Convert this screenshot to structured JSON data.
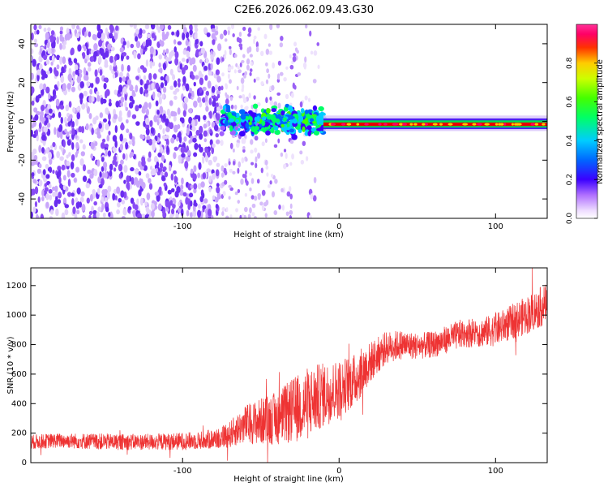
{
  "title": "C2E6.2026.062.09.43.G30",
  "colors": {
    "snr_line": "#ee3333",
    "axis": "#000000",
    "sparse_purple": "#7a3df0",
    "faint_purple": "#e3d2fb"
  },
  "chart_data": [
    {
      "type": "heatmap",
      "title": "",
      "xlabel": "Height of straight line (km)",
      "ylabel": "Frequency (Hz)",
      "xlim": [
        -197,
        133
      ],
      "ylim": [
        -50,
        50
      ],
      "xticks": [
        -100,
        0,
        100
      ],
      "yticks": [
        -40,
        -20,
        0,
        20,
        40
      ],
      "colorbar": {
        "label": "Normalized spectral amplitude",
        "range": [
          0,
          1
        ],
        "ticks": [
          0.0,
          0.2,
          0.4,
          0.6,
          0.8
        ],
        "colormap": "rainbow (white-purple-blue-cyan-green-yellow-red-magenta)"
      },
      "features": [
        {
          "desc": "sparse noise speckle",
          "x_range": [
            -197,
            -75
          ],
          "f_range": [
            -50,
            50
          ],
          "amplitude": 0.15
        },
        {
          "desc": "fading noise",
          "x_range": [
            -75,
            -15
          ],
          "f_range": [
            -50,
            50
          ],
          "amplitude": 0.08
        },
        {
          "desc": "emerging carrier band",
          "x_range": [
            -75,
            -10
          ],
          "f_center": 0,
          "f_halfwidth": 5,
          "amplitude": 0.4
        },
        {
          "desc": "strong carrier line",
          "x_range": [
            -10,
            133
          ],
          "f_center": -1.5,
          "f_halfwidth": 1.5,
          "amplitude": 0.95
        }
      ]
    },
    {
      "type": "line",
      "title": "",
      "xlabel": "Height of straight line (km)",
      "ylabel": "SNR (10 * v/v)",
      "xlim": [
        -197,
        133
      ],
      "ylim": [
        0,
        1320
      ],
      "xticks": [
        -100,
        0,
        100
      ],
      "yticks": [
        0,
        200,
        400,
        600,
        800,
        1000,
        1200
      ],
      "series": [
        {
          "x": [
            -197,
            -180,
            -160,
            -140,
            -120,
            -100,
            -90,
            -80,
            -70,
            -60,
            -50,
            -40,
            -30,
            -20,
            -10,
            0,
            10,
            20,
            30,
            40,
            50,
            60,
            70,
            80,
            90,
            100,
            110,
            120,
            133
          ],
          "values": [
            140,
            150,
            145,
            140,
            140,
            145,
            150,
            160,
            190,
            260,
            280,
            300,
            350,
            400,
            460,
            500,
            560,
            680,
            780,
            800,
            790,
            800,
            840,
            880,
            880,
            900,
            950,
            1000,
            1080
          ],
          "noise_amplitude": [
            50,
            50,
            55,
            55,
            55,
            60,
            60,
            70,
            90,
            130,
            160,
            180,
            220,
            250,
            220,
            200,
            180,
            140,
            110,
            100,
            90,
            90,
            95,
            100,
            100,
            110,
            120,
            130,
            140
          ]
        }
      ]
    }
  ]
}
